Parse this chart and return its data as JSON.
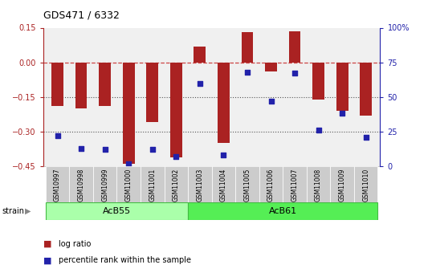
{
  "title": "GDS471 / 6332",
  "samples": [
    "GSM10997",
    "GSM10998",
    "GSM10999",
    "GSM11000",
    "GSM11001",
    "GSM11002",
    "GSM11003",
    "GSM11004",
    "GSM11005",
    "GSM11006",
    "GSM11007",
    "GSM11008",
    "GSM11009",
    "GSM11010"
  ],
  "log_ratio": [
    -0.19,
    -0.2,
    -0.19,
    -0.44,
    -0.26,
    -0.41,
    0.07,
    -0.35,
    0.13,
    -0.04,
    0.135,
    -0.16,
    -0.21,
    -0.23
  ],
  "percentile": [
    22,
    13,
    12,
    2,
    12,
    7,
    60,
    8,
    68,
    47,
    67,
    26,
    38,
    21
  ],
  "group1_label": "AcB55",
  "group1_count": 6,
  "group2_label": "AcB61",
  "group2_count": 8,
  "bar_color": "#aa2222",
  "dot_color": "#2222aa",
  "ylim_left": [
    -0.45,
    0.15
  ],
  "ylim_right": [
    0,
    100
  ],
  "yticks_left": [
    -0.45,
    -0.3,
    -0.15,
    0.0,
    0.15
  ],
  "yticks_right": [
    0,
    25,
    50,
    75,
    100
  ],
  "hline_zero_color": "#cc4444",
  "hline_dotted_color": "#555555",
  "group1_color": "#aaffaa",
  "group2_color": "#55ee55",
  "tick_bg_color": "#cccccc",
  "bar_width": 0.5
}
